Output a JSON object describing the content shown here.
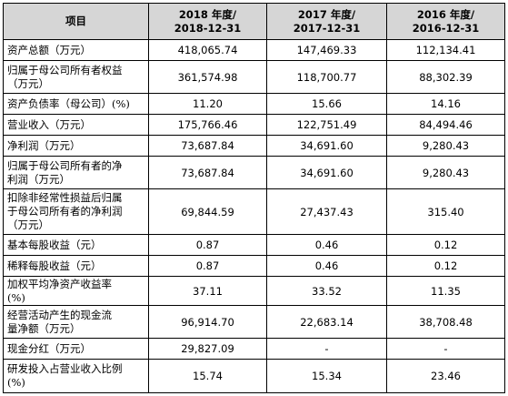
{
  "table": {
    "headers": [
      "项目",
      "2018 年度/\n2018-12-31",
      "2017 年度/\n2017-12-31",
      "2016 年度/\n2016-12-31"
    ],
    "rows": [
      {
        "label": "资产总额（万元）",
        "v2018": "418,065.74",
        "v2017": "147,469.33",
        "v2016": "112,134.41"
      },
      {
        "label": "归属于母公司所有者权益\n（万元）",
        "v2018": "361,574.98",
        "v2017": "118,700.77",
        "v2016": "88,302.39"
      },
      {
        "label": "资产负债率（母公司）(%)",
        "v2018": "11.20",
        "v2017": "15.66",
        "v2016": "14.16"
      },
      {
        "label": "营业收入（万元）",
        "v2018": "175,766.46",
        "v2017": "122,751.49",
        "v2016": "84,494.46"
      },
      {
        "label": "净利润（万元）",
        "v2018": "73,687.84",
        "v2017": "34,691.60",
        "v2016": "9,280.43"
      },
      {
        "label": "归属于母公司所有者的净\n利润（万元）",
        "v2018": "73,687.84",
        "v2017": "34,691.60",
        "v2016": "9,280.43"
      },
      {
        "label": "扣除非经常性损益后归属\n于母公司所有者的净利润\n（万元）",
        "v2018": "69,844.59",
        "v2017": "27,437.43",
        "v2016": "315.40"
      },
      {
        "label": "基本每股收益（元）",
        "v2018": "0.87",
        "v2017": "0.46",
        "v2016": "0.12"
      },
      {
        "label": "稀释每股收益（元）",
        "v2018": "0.87",
        "v2017": "0.46",
        "v2016": "0.12"
      },
      {
        "label": "加权平均净资产收益率\n(%)",
        "v2018": "37.11",
        "v2017": "33.52",
        "v2016": "11.35"
      },
      {
        "label": "经营活动产生的现金流\n量净额（万元）",
        "v2018": "96,914.70",
        "v2017": "22,683.14",
        "v2016": "38,708.48"
      },
      {
        "label": "现金分红（万元）",
        "v2018": "29,827.09",
        "v2017": "-",
        "v2016": "-"
      },
      {
        "label": "研发投入占营业收入比例\n(%)",
        "v2018": "15.74",
        "v2017": "15.34",
        "v2016": "23.46"
      }
    ]
  }
}
